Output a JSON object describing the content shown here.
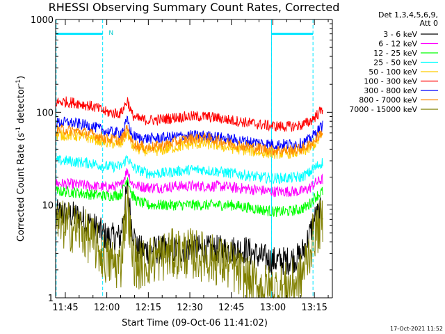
{
  "chart_data": {
    "type": "line",
    "title": "RHESSI Observing Summary Count Rates, Corrected",
    "ylabel_main": "Corrected Count Rate (s",
    "ylabel_sup1": "-1",
    "ylabel_mid": " detector",
    "ylabel_sup2": "-1",
    "ylabel_end": ")",
    "xlabel": "Start Time (09-Oct-06 11:41:02)",
    "timestamp": "17-Oct-2021 11:52",
    "y_scale": "log",
    "ylim": [
      1,
      1000
    ],
    "xlim_minutes": [
      -3.5,
      96.5
    ],
    "grid": false,
    "y_ticks": [
      {
        "value": 1,
        "label": "1"
      },
      {
        "value": 10,
        "label": "10"
      },
      {
        "value": 100,
        "label": "100"
      },
      {
        "value": 1000,
        "label": "1000"
      }
    ],
    "x_ticks": [
      {
        "minutes": 0,
        "label": "11:45"
      },
      {
        "minutes": 15,
        "label": "12:00"
      },
      {
        "minutes": 30,
        "label": "12:15"
      },
      {
        "minutes": 45,
        "label": "12:30"
      },
      {
        "minutes": 60,
        "label": "12:45"
      },
      {
        "minutes": 75,
        "label": "13:00"
      },
      {
        "minutes": 90,
        "label": "13:15"
      }
    ],
    "legend_header": [
      "Det 1,3,4,5,6,9,",
      "Att 0"
    ],
    "legend_position": "right",
    "attenuator_bars": [
      {
        "start_min": -3.3,
        "end_min": 13.5,
        "level": 700
      },
      {
        "start_min": 74.5,
        "end_min": 89.5,
        "level": 700
      }
    ],
    "markers": [
      {
        "label": "N",
        "minutes": 15.2,
        "level": 730
      }
    ],
    "night_boundaries_minutes": [
      -3.3,
      13.5,
      74.5,
      89.5
    ],
    "flare_peak_minutes": 22.5,
    "series": [
      {
        "name": "3 - 6 keV",
        "color": "#000000",
        "x_minutes": [
          -3.3,
          0,
          5,
          10,
          15,
          20,
          21,
          22.5,
          24,
          26,
          30,
          35,
          40,
          45,
          50,
          55,
          60,
          65,
          70,
          75,
          80,
          85,
          88,
          90,
          93
        ],
        "values": [
          8,
          8,
          7.5,
          6,
          4.5,
          4.5,
          8,
          15,
          6,
          3.3,
          3.3,
          3.3,
          3.3,
          3.4,
          3.3,
          3.3,
          3.3,
          3.3,
          2.8,
          2.5,
          2.5,
          2.8,
          4.5,
          7,
          9
        ]
      },
      {
        "name": "6 - 12 keV",
        "color": "#ff00ff",
        "x_minutes": [
          -3.3,
          0,
          5,
          10,
          15,
          20,
          21,
          22.5,
          24,
          26,
          30,
          35,
          40,
          45,
          50,
          55,
          60,
          65,
          70,
          75,
          80,
          85,
          88,
          90,
          93
        ],
        "values": [
          17,
          17,
          16.5,
          16,
          15.5,
          16,
          19,
          24,
          17,
          16,
          15.5,
          15.5,
          16,
          16,
          16,
          16,
          15.5,
          15,
          14.5,
          14,
          14,
          14,
          15,
          17,
          19
        ]
      },
      {
        "name": "12 - 25 keV",
        "color": "#00ff00",
        "x_minutes": [
          -3.3,
          0,
          5,
          10,
          15,
          20,
          21,
          22.5,
          24,
          26,
          30,
          35,
          40,
          45,
          50,
          55,
          60,
          65,
          70,
          75,
          80,
          85,
          88,
          90,
          93
        ],
        "values": [
          14,
          14,
          13.5,
          13,
          12.5,
          13,
          15,
          20,
          13,
          11,
          10,
          10,
          10,
          10,
          10,
          10,
          10,
          9.5,
          9,
          8.5,
          8.5,
          9,
          10,
          12,
          14
        ]
      },
      {
        "name": "25 - 50 keV",
        "color": "#00ffff",
        "x_minutes": [
          -3.3,
          0,
          5,
          10,
          15,
          20,
          21,
          22.5,
          24,
          26,
          30,
          35,
          40,
          45,
          50,
          55,
          60,
          65,
          70,
          75,
          80,
          85,
          88,
          90,
          93
        ],
        "values": [
          30,
          30,
          29,
          28,
          26,
          26,
          28,
          33,
          26,
          24,
          22,
          22,
          23,
          24,
          24,
          23,
          22,
          21,
          20,
          19.5,
          19.5,
          20,
          22,
          25,
          29
        ]
      },
      {
        "name": "50 - 100 keV",
        "color": "#ffcc00",
        "x_minutes": [
          -3.3,
          0,
          5,
          10,
          15,
          20,
          21,
          22.5,
          24,
          26,
          30,
          35,
          40,
          45,
          50,
          55,
          60,
          65,
          70,
          75,
          80,
          85,
          88,
          90,
          93
        ],
        "values": [
          56,
          57,
          55,
          52,
          47,
          45,
          50,
          60,
          44,
          40,
          38,
          39,
          42,
          45,
          46,
          44,
          41,
          39,
          37,
          36,
          36,
          37,
          40,
          45,
          56
        ]
      },
      {
        "name": "100 - 300 keV",
        "color": "#ff0000",
        "x_minutes": [
          -3.3,
          0,
          5,
          10,
          15,
          20,
          21,
          22.5,
          24,
          26,
          30,
          35,
          40,
          45,
          50,
          55,
          60,
          65,
          70,
          75,
          80,
          85,
          88,
          90,
          93
        ],
        "values": [
          128,
          130,
          125,
          115,
          100,
          97,
          110,
          135,
          95,
          85,
          82,
          84,
          88,
          90,
          90,
          87,
          82,
          78,
          74,
          71,
          70,
          72,
          78,
          88,
          108
        ]
      },
      {
        "name": "300 - 800 keV",
        "color": "#0000ff",
        "x_minutes": [
          -3.3,
          0,
          5,
          10,
          15,
          20,
          21,
          22.5,
          24,
          26,
          30,
          35,
          40,
          45,
          50,
          55,
          60,
          65,
          70,
          75,
          80,
          85,
          88,
          90,
          93
        ],
        "values": [
          77,
          78,
          75,
          70,
          62,
          60,
          66,
          82,
          57,
          53,
          52,
          53,
          55,
          56,
          56,
          54,
          51,
          49,
          47,
          45,
          45,
          46,
          50,
          58,
          72
        ]
      },
      {
        "name": "800 - 7000 keV",
        "color": "#ff8800",
        "x_minutes": [
          -3.3,
          0,
          5,
          10,
          15,
          20,
          21,
          22.5,
          24,
          26,
          30,
          35,
          40,
          45,
          50,
          55,
          60,
          65,
          70,
          75,
          80,
          85,
          88,
          90,
          93
        ],
        "values": [
          64,
          65,
          62,
          58,
          52,
          50,
          55,
          68,
          48,
          44,
          42,
          44,
          48,
          52,
          53,
          50,
          46,
          43,
          41,
          39,
          39,
          40,
          44,
          50,
          62
        ]
      },
      {
        "name": "7000 - 15000 keV",
        "color": "#808000",
        "x_minutes": [
          -3.3,
          0,
          5,
          10,
          15,
          20,
          21,
          22.5,
          24,
          26,
          30,
          35,
          40,
          45,
          50,
          55,
          60,
          65,
          70,
          75,
          80,
          85,
          88,
          90,
          93
        ],
        "values": [
          6,
          6,
          5.5,
          4,
          2.5,
          2.2,
          5,
          11,
          3,
          2.2,
          2.5,
          2.8,
          3,
          3,
          2.8,
          2.5,
          2.2,
          1.6,
          1.3,
          1.2,
          1.3,
          1.6,
          3,
          5,
          6.5
        ]
      }
    ]
  }
}
